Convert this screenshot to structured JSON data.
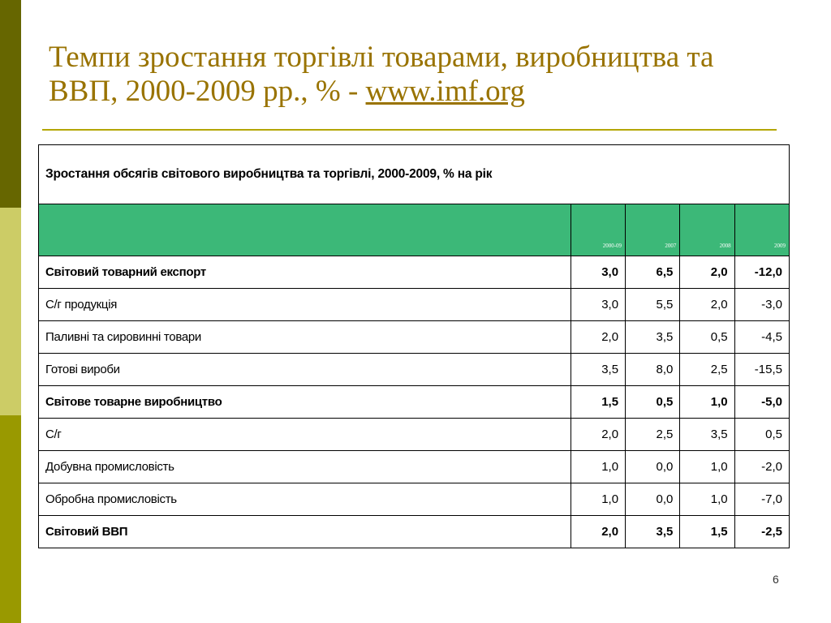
{
  "slide": {
    "title_text": "Темпи зростання торгівлі товарами, виробництва та ВВП, 2000-2009 рр., % - ",
    "title_link": "www.imf.org",
    "page_number": "6"
  },
  "table": {
    "caption": "Зростання обсягів світового виробництва та торгівлі, 2000-2009, % на рік",
    "columns": [
      "2000-09",
      "2007",
      "2008",
      "2009"
    ],
    "rows": [
      {
        "label": "Світовий товарний експорт",
        "values": [
          "3,0",
          "6,5",
          "2,0",
          "-12,0"
        ],
        "bold": true
      },
      {
        "label": "С/г продукція",
        "values": [
          "3,0",
          "5,5",
          "2,0",
          "-3,0"
        ],
        "bold": false
      },
      {
        "label": "Паливні та сировинні товари",
        "values": [
          "2,0",
          "3,5",
          "0,5",
          "-4,5"
        ],
        "bold": false
      },
      {
        "label": "Готові вироби",
        "values": [
          "3,5",
          "8,0",
          "2,5",
          "-15,5"
        ],
        "bold": false
      },
      {
        "label": "Світове товарне виробництво",
        "values": [
          "1,5",
          "0,5",
          "1,0",
          "-5,0"
        ],
        "bold": true
      },
      {
        "label": "С/г",
        "values": [
          "2,0",
          "2,5",
          "3,5",
          "0,5"
        ],
        "bold": false
      },
      {
        "label": "Добувна промисловість",
        "values": [
          "1,0",
          "0,0",
          "1,0",
          "-2,0"
        ],
        "bold": false
      },
      {
        "label": "Обробна промисловість",
        "values": [
          "1,0",
          "0,0",
          "1,0",
          "-7,0"
        ],
        "bold": false
      },
      {
        "label": "Світовий ВВП",
        "values": [
          "2,0",
          "3,5",
          "1,5",
          "-2,5"
        ],
        "bold": true
      }
    ]
  },
  "colors": {
    "title": "#997300",
    "header_fill": "#3cb878",
    "sidebar_top": "#666600",
    "sidebar_mid": "#cccc66",
    "sidebar_bottom": "#999900"
  }
}
